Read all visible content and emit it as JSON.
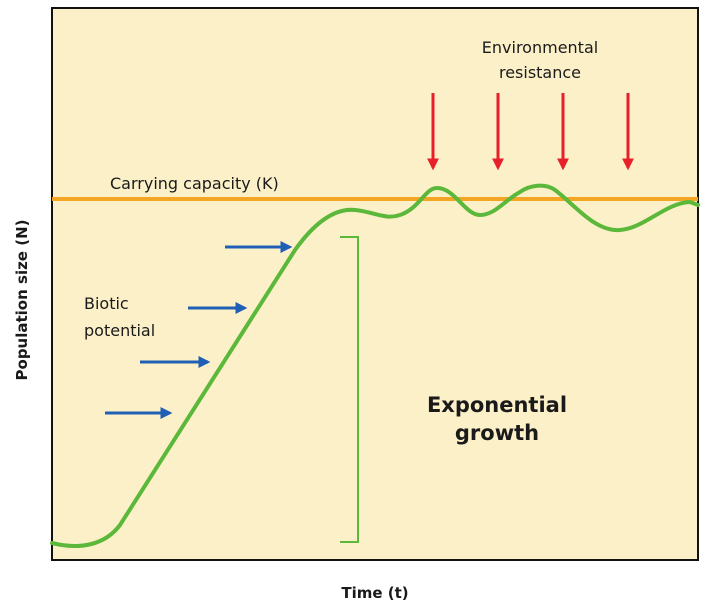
{
  "diagram": {
    "y_axis_label": "Population size (N)",
    "x_axis_label": "Time (t)",
    "carrying_capacity_label": "Carrying capacity (K)",
    "environmental_resistance_label": [
      "Environmental",
      "resistance"
    ],
    "biotic_potential_label": [
      "Biotic",
      "potential"
    ],
    "exponential_growth_label": [
      "Exponential",
      "growth"
    ]
  }
}
